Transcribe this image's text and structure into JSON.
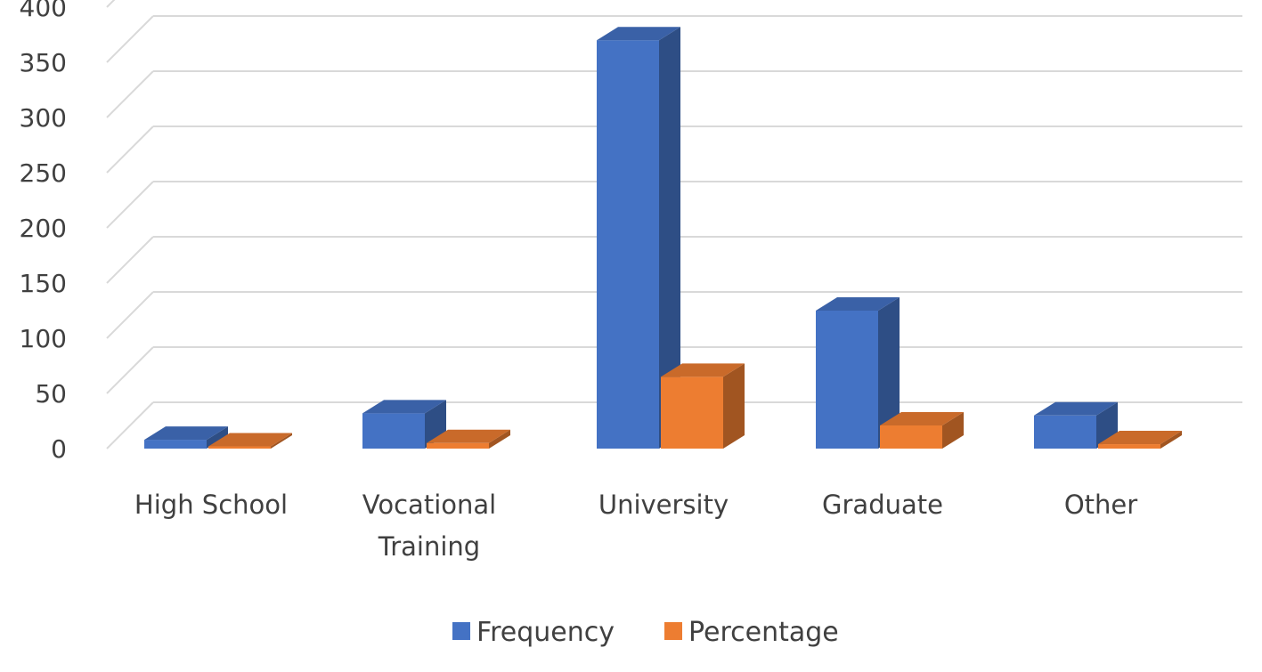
{
  "chart_data": {
    "type": "bar",
    "title": "",
    "xlabel": "",
    "ylabel": "",
    "categories": [
      [
        "High School"
      ],
      [
        "Vocational",
        "Training"
      ],
      [
        "University"
      ],
      [
        "Graduate"
      ],
      [
        "Other"
      ]
    ],
    "series": [
      {
        "name": "Frequency",
        "values": [
          8,
          32,
          370,
          125,
          30
        ],
        "color": "#4472C4"
      },
      {
        "name": "Percentage",
        "values": [
          2,
          5,
          65,
          21,
          4
        ],
        "color": "#ED7D31"
      }
    ],
    "yticks": [
      "0",
      "50",
      "100",
      "150",
      "200",
      "250",
      "300",
      "350",
      "400"
    ],
    "ylim": [
      0,
      400
    ],
    "grid": true,
    "legend": "bottom",
    "style": "3d-clustered-column"
  }
}
